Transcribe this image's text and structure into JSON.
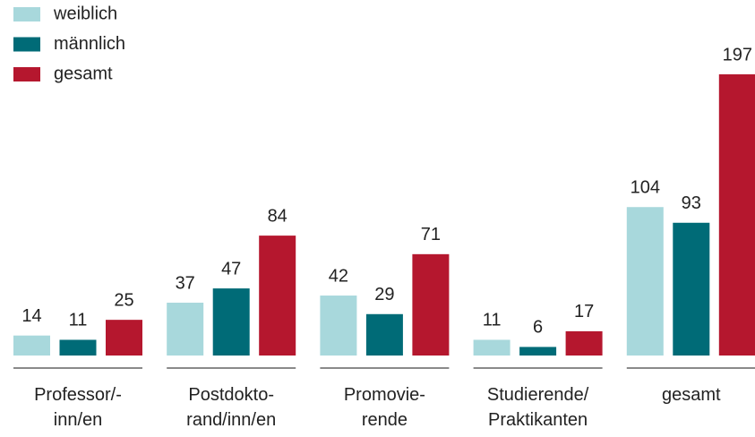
{
  "chart_data": {
    "type": "bar",
    "categories": [
      "Professor/-\ninn/en",
      "Postdokto-\nrand/inn/en",
      "Promovie-\nrende",
      "Studierende/\nPraktikanten",
      "gesamt"
    ],
    "series": [
      {
        "name": "weiblich",
        "color": "#a8d8dc",
        "values": [
          14,
          37,
          42,
          11,
          104
        ]
      },
      {
        "name": "männlich",
        "color": "#006b77",
        "values": [
          11,
          47,
          29,
          6,
          93
        ]
      },
      {
        "name": "gesamt",
        "color": "#b5172e",
        "values": [
          25,
          84,
          71,
          17,
          197
        ]
      }
    ],
    "legend": "top-left"
  }
}
